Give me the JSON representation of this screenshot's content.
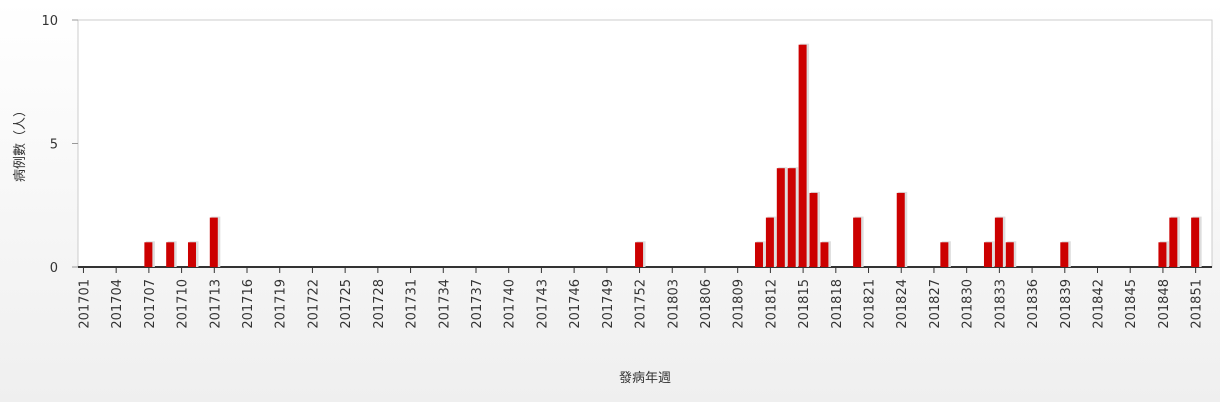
{
  "chart_data": {
    "type": "bar",
    "x_label": "發病年週",
    "y_label": "病例數（人）",
    "color": "#cc0000",
    "categories": [
      "201701",
      null,
      null,
      "201704",
      null,
      null,
      "201707",
      null,
      null,
      "201710",
      null,
      null,
      "201713",
      null,
      null,
      "201716",
      null,
      null,
      "201719",
      null,
      null,
      "201722",
      null,
      null,
      "201725",
      null,
      null,
      "201728",
      null,
      null,
      "201731",
      null,
      null,
      "201734",
      null,
      null,
      "201737",
      null,
      null,
      "201740",
      null,
      null,
      "201743",
      null,
      null,
      "201746",
      null,
      null,
      "201749",
      null,
      null,
      "201752",
      null,
      null,
      "201803",
      null,
      null,
      "201806",
      null,
      null,
      "201809",
      null,
      null,
      "201812",
      null,
      null,
      "201815",
      null,
      null,
      "201818",
      null,
      null,
      "201821",
      null,
      null,
      "201824",
      null,
      null,
      "201827",
      null,
      null,
      "201830",
      null,
      null,
      "201833",
      null,
      null,
      "201836",
      null,
      null,
      "201839",
      null,
      null,
      "201842",
      null,
      null,
      "201845",
      null,
      null,
      "201848",
      null,
      null,
      "201851",
      null
    ],
    "values": [
      0,
      0,
      0,
      0,
      0,
      0,
      1,
      0,
      1,
      0,
      1,
      0,
      2,
      0,
      0,
      0,
      0,
      0,
      0,
      0,
      0,
      0,
      0,
      0,
      0,
      0,
      0,
      0,
      0,
      0,
      0,
      0,
      0,
      0,
      0,
      0,
      0,
      0,
      0,
      0,
      0,
      0,
      0,
      0,
      0,
      0,
      0,
      0,
      0,
      0,
      0,
      1,
      0,
      0,
      0,
      0,
      0,
      0,
      0,
      0,
      0,
      0,
      1,
      2,
      4,
      4,
      9,
      3,
      1,
      0,
      0,
      2,
      0,
      0,
      0,
      3,
      0,
      0,
      0,
      1,
      0,
      0,
      0,
      1,
      2,
      1,
      0,
      0,
      0,
      0,
      1,
      0,
      0,
      0,
      0,
      0,
      0,
      0,
      0,
      1,
      2,
      0,
      2,
      0
    ],
    "ylim": [
      0,
      10
    ],
    "yticks": [
      0,
      5,
      10
    ],
    "grid": false
  }
}
